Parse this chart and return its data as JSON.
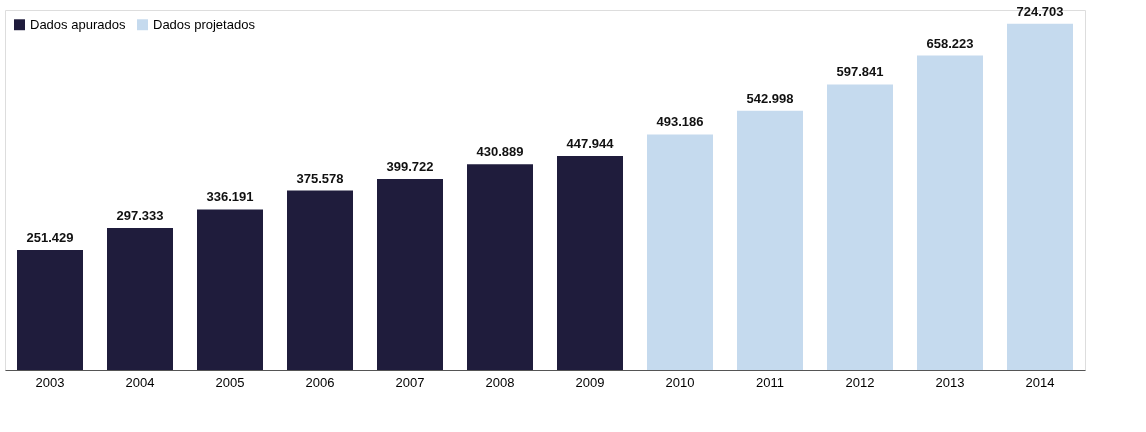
{
  "chart_data": {
    "type": "bar",
    "categories": [
      "2003",
      "2004",
      "2005",
      "2006",
      "2007",
      "2008",
      "2009",
      "2010",
      "2011",
      "2012",
      "2013",
      "2014"
    ],
    "series": [
      {
        "name": "Dados apurados",
        "color": "#1f1c3c",
        "values": [
          251429,
          297333,
          336191,
          375578,
          399722,
          430889,
          447944,
          null,
          null,
          null,
          null,
          null
        ],
        "value_labels": [
          "251.429",
          "297.333",
          "336.191",
          "375.578",
          "399.722",
          "430.889",
          "447.944",
          null,
          null,
          null,
          null,
          null
        ]
      },
      {
        "name": "Dados projetados",
        "color": "#c5daee",
        "values": [
          null,
          null,
          null,
          null,
          null,
          null,
          null,
          493186,
          542998,
          597841,
          658223,
          724703
        ],
        "value_labels": [
          null,
          null,
          null,
          null,
          null,
          null,
          null,
          "493.186",
          "542.998",
          "597.841",
          "658.223",
          "724.703"
        ]
      }
    ],
    "legend": "top left",
    "grid": false
  }
}
